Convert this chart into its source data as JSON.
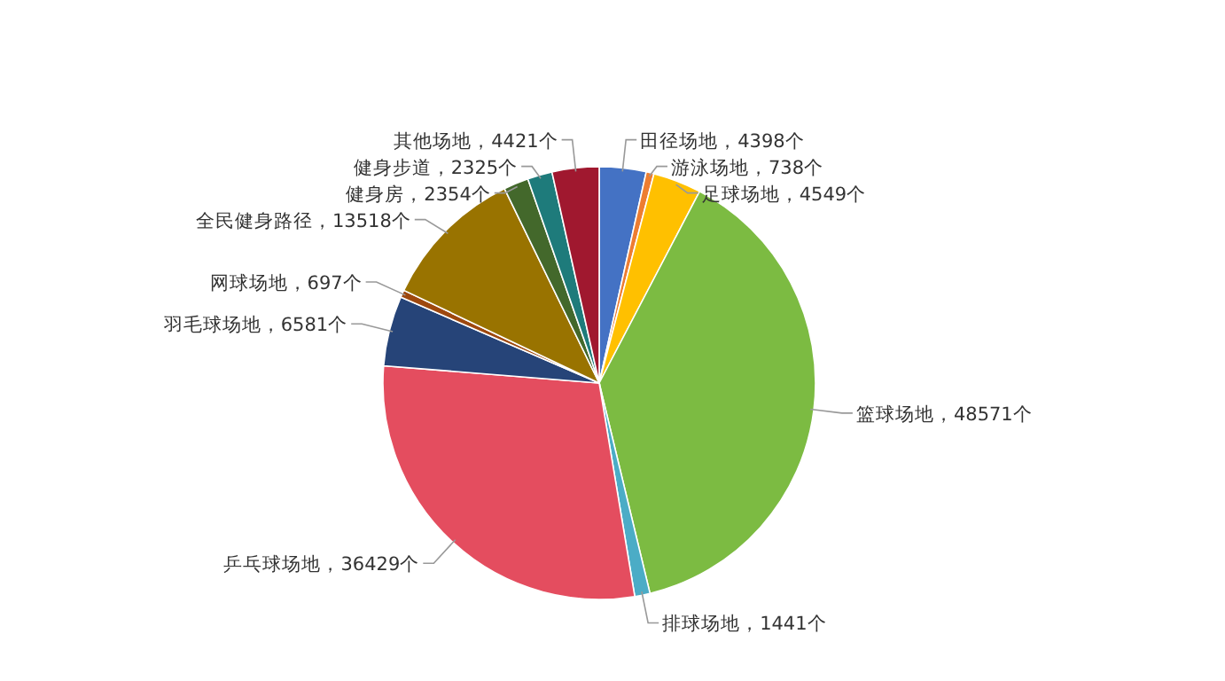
{
  "chart_data": {
    "type": "pie",
    "categories": [
      "田径场地",
      "游泳场地",
      "足球场地",
      "篮球场地",
      "排球场地",
      "乒乓球场地",
      "羽毛球场地",
      "网球场地",
      "全民健身路径",
      "健身房",
      "健身步道",
      "其他场地"
    ],
    "values": [
      4398,
      738,
      4549,
      48571,
      1441,
      36429,
      6581,
      697,
      13518,
      2354,
      2325,
      4421
    ],
    "value_labels": [
      "4398个",
      "738个",
      "4549个",
      "48571个",
      "1441个",
      "36429个",
      "6581个",
      "697个",
      "13518个",
      "2354个",
      "2325个",
      "4421个"
    ],
    "colors": [
      "#4472c4",
      "#ed7d31",
      "#ffc000",
      "#7cbb42",
      "#4bacc6",
      "#e44d5f",
      "#264478",
      "#9e480e",
      "#997300",
      "#43682b",
      "#1e7b7b",
      "#a0182f"
    ],
    "legend": false
  }
}
